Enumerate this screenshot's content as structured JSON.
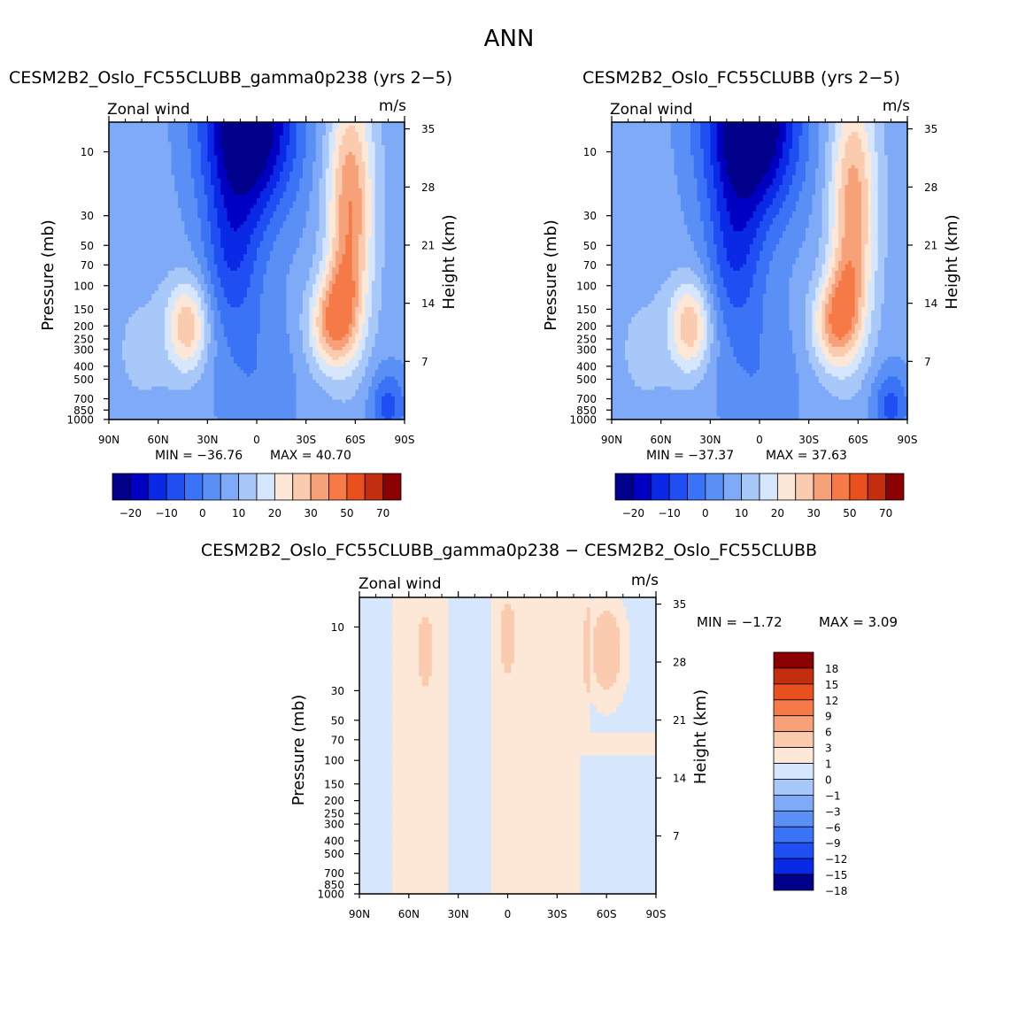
{
  "page_title": "ANN",
  "chart_data": [
    {
      "type": "heatmap",
      "title": "CESM2B2_Oslo_FC55CLUBBgamma0p238 (yrs 2-5)",
      "title_display": "CESM2B2_Oslo_FC55CLUBB_gamma0p238 (yrs 2−5)",
      "subtitle_left": "Zonal wind",
      "subtitle_right": "m/s",
      "ylabel": "Pressure (mb)",
      "ylabel_right": "Height (km)",
      "x_tick_labels": [
        "90N",
        "60N",
        "30N",
        "0",
        "30S",
        "60S",
        "90S"
      ],
      "x_tick_values": [
        90,
        60,
        30,
        0,
        -30,
        -60,
        -90
      ],
      "y_tick_labels": [
        "10",
        "30",
        "50",
        "70",
        "100",
        "150",
        "200",
        "250",
        "300",
        "400",
        "500",
        "700",
        "850",
        "1000"
      ],
      "y_tick_values": [
        10,
        30,
        50,
        70,
        100,
        150,
        200,
        250,
        300,
        400,
        500,
        700,
        850,
        1000
      ],
      "y_right_tick_labels": [
        "7",
        "14",
        "21",
        "28",
        "35"
      ],
      "y_right_tick_values": [
        7,
        14,
        21,
        28,
        35
      ],
      "ylim": [
        6,
        1000
      ],
      "log_scale_y": true,
      "min_label": "MIN = −36.76",
      "max_label": "MAX = 40.70",
      "min": -36.76,
      "max": 40.7,
      "contour_levels": [
        -25,
        -20,
        -15,
        -10,
        -5,
        0,
        5,
        10,
        15,
        20,
        25,
        30,
        40,
        50,
        60,
        70
      ],
      "colorbar_labels": [
        "−20",
        "−10",
        "0",
        "10",
        "20",
        "30",
        "50",
        "70"
      ],
      "field": {
        "features": [
          {
            "kind": "gauss",
            "lat": -57,
            "p": 25,
            "dlat": 10,
            "dlogp": 1.5,
            "amp": 28
          },
          {
            "kind": "gauss",
            "lat": -45,
            "p": 200,
            "dlat": 10,
            "dlogp": 0.55,
            "amp": 22
          },
          {
            "kind": "gauss",
            "lat": -52,
            "p": 120,
            "dlat": 8,
            "dlogp": 0.6,
            "amp": 10
          },
          {
            "kind": "gauss",
            "lat": 42,
            "p": 200,
            "dlat": 9,
            "dlogp": 0.55,
            "amp": 22
          },
          {
            "kind": "gauss",
            "lat": 5,
            "p": 6,
            "dlat": 20,
            "dlogp": 1.15,
            "amp": -37
          },
          {
            "kind": "gauss",
            "lat": 15,
            "p": 60,
            "dlat": 12,
            "dlogp": 1.0,
            "amp": -14
          },
          {
            "kind": "gauss",
            "lat": -80,
            "p": 800,
            "dlat": 8,
            "dlogp": 0.45,
            "amp": -14
          },
          {
            "kind": "gauss",
            "lat": 0,
            "p": 500,
            "dlat": 18,
            "dlogp": 1.0,
            "amp": -6
          },
          {
            "kind": "gauss",
            "lat": 70,
            "p": 300,
            "dlat": 15,
            "dlogp": 0.9,
            "amp": 4
          }
        ],
        "base": 2
      }
    },
    {
      "type": "heatmap",
      "title_display": "CESM2B2_Oslo_FC55CLUBB (yrs 2−5)",
      "subtitle_left": "Zonal wind",
      "subtitle_right": "m/s",
      "ylabel": "Pressure (mb)",
      "ylabel_right": "Height (km)",
      "x_tick_labels": [
        "90N",
        "60N",
        "30N",
        "0",
        "30S",
        "60S",
        "90S"
      ],
      "x_tick_values": [
        90,
        60,
        30,
        0,
        -30,
        -60,
        -90
      ],
      "y_tick_labels": [
        "10",
        "30",
        "50",
        "70",
        "100",
        "150",
        "200",
        "250",
        "300",
        "400",
        "500",
        "700",
        "850",
        "1000"
      ],
      "y_tick_values": [
        10,
        30,
        50,
        70,
        100,
        150,
        200,
        250,
        300,
        400,
        500,
        700,
        850,
        1000
      ],
      "y_right_tick_labels": [
        "7",
        "14",
        "21",
        "28",
        "35"
      ],
      "y_right_tick_values": [
        7,
        14,
        21,
        28,
        35
      ],
      "ylim": [
        6,
        1000
      ],
      "log_scale_y": true,
      "min_label": "MIN = −37.37",
      "max_label": "MAX = 37.63",
      "min": -37.37,
      "max": 37.63,
      "contour_levels": [
        -25,
        -20,
        -15,
        -10,
        -5,
        0,
        5,
        10,
        15,
        20,
        25,
        30,
        40,
        50,
        60,
        70
      ],
      "colorbar_labels": [
        "−20",
        "−10",
        "0",
        "10",
        "20",
        "30",
        "50",
        "70"
      ],
      "field": {
        "features": [
          {
            "kind": "gauss",
            "lat": -57,
            "p": 25,
            "dlat": 10,
            "dlogp": 1.5,
            "amp": 26
          },
          {
            "kind": "gauss",
            "lat": -45,
            "p": 200,
            "dlat": 10,
            "dlogp": 0.55,
            "amp": 21
          },
          {
            "kind": "gauss",
            "lat": -52,
            "p": 120,
            "dlat": 8,
            "dlogp": 0.6,
            "amp": 10
          },
          {
            "kind": "gauss",
            "lat": 42,
            "p": 200,
            "dlat": 9,
            "dlogp": 0.55,
            "amp": 22
          },
          {
            "kind": "gauss",
            "lat": 5,
            "p": 6,
            "dlat": 20,
            "dlogp": 1.15,
            "amp": -38
          },
          {
            "kind": "gauss",
            "lat": 15,
            "p": 60,
            "dlat": 12,
            "dlogp": 1.0,
            "amp": -14
          },
          {
            "kind": "gauss",
            "lat": -80,
            "p": 800,
            "dlat": 8,
            "dlogp": 0.45,
            "amp": -14
          },
          {
            "kind": "gauss",
            "lat": 0,
            "p": 500,
            "dlat": 18,
            "dlogp": 1.0,
            "amp": -6
          },
          {
            "kind": "gauss",
            "lat": 70,
            "p": 300,
            "dlat": 15,
            "dlogp": 0.9,
            "amp": 4
          }
        ],
        "base": 2
      }
    },
    {
      "type": "heatmap",
      "title_display": "CESM2B2_Oslo_FC55CLUBB_gamma0p238 − CESM2B2_Oslo_FC55CLUBB",
      "subtitle_left": "Zonal wind",
      "subtitle_right": "m/s",
      "ylabel": "Pressure (mb)",
      "ylabel_right": "Height (km)",
      "x_tick_labels": [
        "90N",
        "60N",
        "30N",
        "0",
        "30S",
        "60S",
        "90S"
      ],
      "x_tick_values": [
        90,
        60,
        30,
        0,
        -30,
        -60,
        -90
      ],
      "y_tick_labels": [
        "10",
        "30",
        "50",
        "70",
        "100",
        "150",
        "200",
        "250",
        "300",
        "400",
        "500",
        "700",
        "850",
        "1000"
      ],
      "y_tick_values": [
        10,
        30,
        50,
        70,
        100,
        150,
        200,
        250,
        300,
        400,
        500,
        700,
        850,
        1000
      ],
      "y_right_tick_labels": [
        "7",
        "14",
        "21",
        "28",
        "35"
      ],
      "y_right_tick_values": [
        7,
        14,
        21,
        28,
        35
      ],
      "ylim": [
        6,
        1000
      ],
      "log_scale_y": true,
      "min_label": "MIN = −1.72",
      "max_label": "MAX = 3.09",
      "min": -1.72,
      "max": 3.09,
      "contour_levels": [
        -18,
        -15,
        -12,
        -9,
        -6,
        -3,
        -1,
        0,
        1,
        3,
        6,
        9,
        12,
        15,
        18
      ],
      "colorbar_labels": [
        "18",
        "15",
        "12",
        "9",
        "6",
        "3",
        "1",
        "0",
        "−1",
        "−3",
        "−6",
        "−9",
        "−12",
        "−15",
        "−18"
      ],
      "field": {
        "features": [
          {
            "kind": "band",
            "lat_min": 70,
            "lat_max": 90,
            "value": -0.5
          },
          {
            "kind": "band",
            "lat_min": 10,
            "lat_max": 35,
            "value": -0.5
          },
          {
            "kind": "band",
            "lat_min": -90,
            "lat_max": -45,
            "value": -0.5,
            "p_min": 90,
            "p_max": 1000
          },
          {
            "kind": "band",
            "lat_min": -90,
            "lat_max": -50,
            "value": -0.5,
            "p_min": 5,
            "p_max": 60
          },
          {
            "kind": "gauss",
            "lat": -60,
            "p": 15,
            "dlat": 8,
            "dlogp": 0.6,
            "amp": 2.8
          },
          {
            "kind": "gauss",
            "lat": 50,
            "p": 15,
            "dlat": 3,
            "dlogp": 0.4,
            "amp": 1.6
          },
          {
            "kind": "gauss",
            "lat": 0,
            "p": 12,
            "dlat": 3,
            "dlogp": 0.4,
            "amp": 1.6
          }
        ],
        "base": 0.5
      }
    }
  ],
  "colors": {
    "scale_main": [
      "#00008b",
      "#0000c2",
      "#0a29e6",
      "#1f4ff2",
      "#3a73f5",
      "#5a90f5",
      "#7eaaf7",
      "#a9c8fa",
      "#d6e6fc",
      "#fde8d8",
      "#fbcbaf",
      "#f7a179",
      "#f57a48",
      "#e9501e",
      "#c32f0e",
      "#8b0000"
    ],
    "scale_diff": [
      "#8b0000",
      "#c32f0e",
      "#e9501e",
      "#f57a48",
      "#f7a179",
      "#fbcbaf",
      "#fde8d8",
      "#d6e6fc",
      "#a9c8fa",
      "#7eaaf7",
      "#5a90f5",
      "#3a73f5",
      "#1f4ff2",
      "#0a29e6",
      "#00008b"
    ]
  }
}
